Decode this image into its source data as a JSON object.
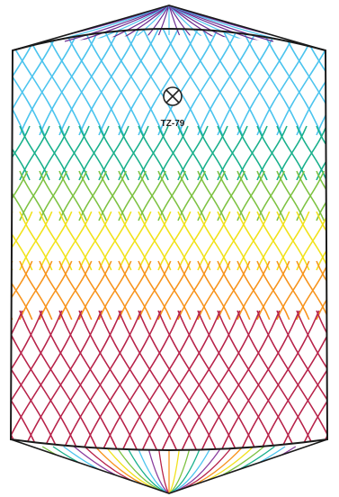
{
  "diagram": {
    "marker": {
      "icon": "crossed-circle-icon",
      "label": "TZ-79"
    },
    "outline_color": "#1a1a1a",
    "bands": [
      {
        "name": "cap-top",
        "color": "#6a2c91"
      },
      {
        "name": "blue",
        "color": "#4cc4ee"
      },
      {
        "name": "teal",
        "color": "#19b08c"
      },
      {
        "name": "green",
        "color": "#7dc242"
      },
      {
        "name": "yellow",
        "color": "#f1e21c"
      },
      {
        "name": "orange",
        "color": "#f7941d"
      },
      {
        "name": "crimson",
        "color": "#b7234a"
      },
      {
        "name": "cap-bottom",
        "color": "#8a3f9e"
      }
    ]
  }
}
